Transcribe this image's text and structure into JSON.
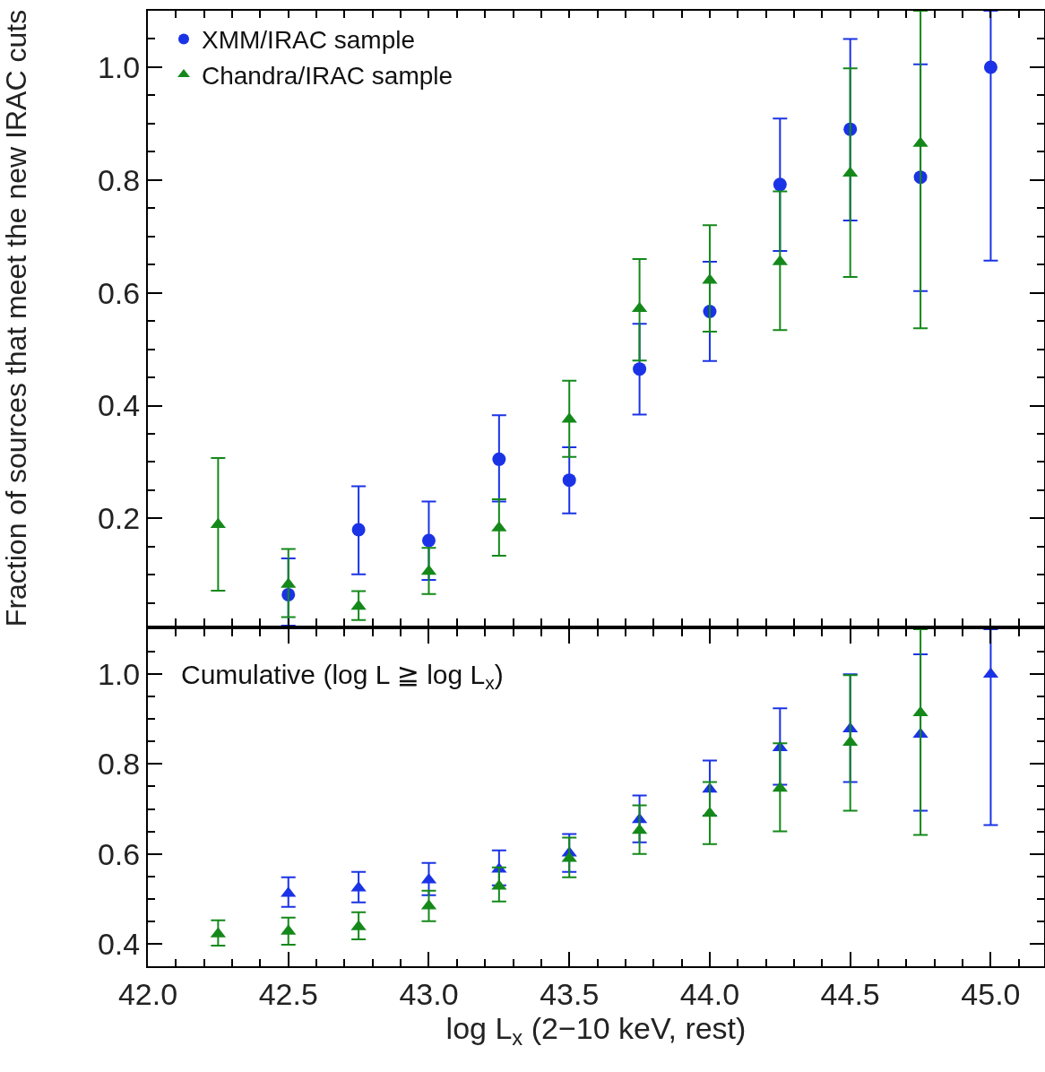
{
  "chart_data": [
    {
      "type": "scatter",
      "ylabel": "Fraction of sources that meet the new IRAC cuts",
      "legend": "top left",
      "tick_labels": "y",
      "xlim": [
        42.0,
        45.19
      ],
      "xticks": [
        {
          "value": 42,
          "label": null
        },
        {
          "value": 42.1,
          "label": null
        },
        {
          "value": 42.2,
          "label": null
        },
        {
          "value": 42.3,
          "label": null
        },
        {
          "value": 42.4,
          "label": null
        },
        {
          "value": 42.5,
          "label": null
        },
        {
          "value": 42.6,
          "label": null
        },
        {
          "value": 42.7,
          "label": null
        },
        {
          "value": 42.8,
          "label": null
        },
        {
          "value": 42.9,
          "label": null
        },
        {
          "value": 43,
          "label": null
        },
        {
          "value": 43.1,
          "label": null
        },
        {
          "value": 43.2,
          "label": null
        },
        {
          "value": 43.3,
          "label": null
        },
        {
          "value": 43.4,
          "label": null
        },
        {
          "value": 43.5,
          "label": null
        },
        {
          "value": 43.6,
          "label": null
        },
        {
          "value": 43.7,
          "label": null
        },
        {
          "value": 43.8,
          "label": null
        },
        {
          "value": 43.9,
          "label": null
        },
        {
          "value": 44,
          "label": null
        },
        {
          "value": 44.1,
          "label": null
        },
        {
          "value": 44.2,
          "label": null
        },
        {
          "value": 44.3,
          "label": null
        },
        {
          "value": 44.4,
          "label": null
        },
        {
          "value": 44.5,
          "label": null
        },
        {
          "value": 44.6,
          "label": null
        },
        {
          "value": 44.7,
          "label": null
        },
        {
          "value": 44.8,
          "label": null
        },
        {
          "value": 44.9,
          "label": null
        },
        {
          "value": 45,
          "label": null
        },
        {
          "value": 45.1,
          "label": null
        }
      ],
      "ylim": [
        0.01,
        1.1
      ],
      "yticks": [
        {
          "value": 0.05,
          "label": null
        },
        {
          "value": 0.1,
          "label": null
        },
        {
          "value": 0.15,
          "label": null
        },
        0.2,
        {
          "value": 0.25,
          "label": null
        },
        {
          "value": 0.3,
          "label": null
        },
        {
          "value": 0.35,
          "label": null
        },
        0.4,
        {
          "value": 0.45,
          "label": null
        },
        {
          "value": 0.5,
          "label": null
        },
        {
          "value": 0.55,
          "label": null
        },
        0.6,
        {
          "value": 0.65,
          "label": null
        },
        {
          "value": 0.7,
          "label": null
        },
        {
          "value": 0.75,
          "label": null
        },
        0.8,
        {
          "value": 0.85,
          "label": null
        },
        {
          "value": 0.9,
          "label": null
        },
        {
          "value": 0.95,
          "label": null
        },
        {
          "value": 1,
          "label": "1.0"
        },
        {
          "value": 1.05,
          "label": null
        }
      ],
      "series": [
        {
          "name": "XMM/IRAC sample",
          "color": "#1a33e6",
          "marker": "circle",
          "x": [
            42.5,
            42.75,
            43.0,
            43.25,
            43.5,
            43.75,
            44.0,
            44.25,
            44.5,
            44.75,
            45.0
          ],
          "values": [
            0.065,
            0.18,
            0.161,
            0.305,
            0.268,
            0.465,
            0.567,
            0.792,
            0.89,
            0.805,
            1.0
          ],
          "errors": [
            [
              0.01,
              0.129
            ],
            [
              0.101,
              0.257
            ],
            [
              0.091,
              0.23
            ],
            [
              0.23,
              0.383
            ],
            [
              0.209,
              0.326
            ],
            [
              0.384,
              0.545
            ],
            [
              0.479,
              0.655
            ],
            [
              0.674,
              0.909
            ],
            [
              0.728,
              1.05
            ],
            [
              0.603,
              1.005
            ],
            [
              0.657,
              1.1
            ]
          ]
        },
        {
          "name": "Chandra/IRAC sample",
          "color": "#14891a",
          "marker": "triangle",
          "x": [
            42.25,
            42.5,
            42.75,
            43.0,
            43.25,
            43.5,
            43.75,
            44.0,
            44.25,
            44.5,
            44.75
          ],
          "values": [
            0.189,
            0.083,
            0.044,
            0.106,
            0.183,
            0.376,
            0.572,
            0.622,
            0.655,
            0.812,
            0.865
          ],
          "errors": [
            [
              0.072,
              0.307
            ],
            [
              0.025,
              0.146
            ],
            [
              0.02,
              0.071
            ],
            [
              0.066,
              0.148
            ],
            [
              0.134,
              0.234
            ],
            [
              0.309,
              0.444
            ],
            [
              0.48,
              0.66
            ],
            [
              0.531,
              0.72
            ],
            [
              0.534,
              0.78
            ],
            [
              0.628,
              0.998
            ],
            [
              0.537,
              1.1
            ]
          ]
        }
      ]
    },
    {
      "type": "scatter",
      "xlabel": "log L$_{x}$ (2−10 keV, rest)",
      "annotations": [
        "Cumulative (log L ≧ log L$_{x}$)"
      ],
      "xlim": [
        42.0,
        45.19
      ],
      "xticks": [
        {
          "value": 42,
          "label": "42.0"
        },
        {
          "value": 42.1,
          "label": null
        },
        {
          "value": 42.2,
          "label": null
        },
        {
          "value": 42.3,
          "label": null
        },
        {
          "value": 42.4,
          "label": null
        },
        {
          "value": 42.5,
          "label": "42.5"
        },
        {
          "value": 42.6,
          "label": null
        },
        {
          "value": 42.7,
          "label": null
        },
        {
          "value": 42.8,
          "label": null
        },
        {
          "value": 42.9,
          "label": null
        },
        {
          "value": 43,
          "label": "43.0"
        },
        {
          "value": 43.1,
          "label": null
        },
        {
          "value": 43.2,
          "label": null
        },
        {
          "value": 43.3,
          "label": null
        },
        {
          "value": 43.4,
          "label": null
        },
        {
          "value": 43.5,
          "label": "43.5"
        },
        {
          "value": 43.6,
          "label": null
        },
        {
          "value": 43.7,
          "label": null
        },
        {
          "value": 43.8,
          "label": null
        },
        {
          "value": 43.9,
          "label": null
        },
        {
          "value": 44,
          "label": "44.0"
        },
        {
          "value": 44.1,
          "label": null
        },
        {
          "value": 44.2,
          "label": null
        },
        {
          "value": 44.3,
          "label": null
        },
        {
          "value": 44.4,
          "label": null
        },
        {
          "value": 44.5,
          "label": "44.5"
        },
        {
          "value": 44.6,
          "label": null
        },
        {
          "value": 44.7,
          "label": null
        },
        {
          "value": 44.8,
          "label": null
        },
        {
          "value": 44.9,
          "label": null
        },
        {
          "value": 45,
          "label": "45.0"
        },
        {
          "value": 45.1,
          "label": null
        }
      ],
      "ylim": [
        0.35,
        1.1
      ],
      "yticks": [
        0.4,
        {
          "value": 0.45,
          "label": null
        },
        {
          "value": 0.5,
          "label": null
        },
        {
          "value": 0.55,
          "label": null
        },
        0.6,
        {
          "value": 0.65,
          "label": null
        },
        {
          "value": 0.7,
          "label": null
        },
        {
          "value": 0.75,
          "label": null
        },
        0.8,
        {
          "value": 0.85,
          "label": null
        },
        {
          "value": 0.9,
          "label": null
        },
        {
          "value": 0.95,
          "label": null
        },
        {
          "value": 1,
          "label": "1.0"
        },
        {
          "value": 1.05,
          "label": null
        }
      ],
      "series": [
        {
          "color": "#1a33e6",
          "marker": "triangle",
          "x": [
            42.5,
            42.75,
            43.0,
            43.25,
            43.5,
            43.75,
            44.0,
            44.25,
            44.5,
            44.75,
            45.0
          ],
          "values": [
            0.512,
            0.524,
            0.542,
            0.566,
            0.602,
            0.676,
            0.744,
            0.836,
            0.878,
            0.866,
            1.0
          ],
          "errors": [
            [
              0.482,
              0.548
            ],
            [
              0.492,
              0.56
            ],
            [
              0.508,
              0.58
            ],
            [
              0.53,
              0.608
            ],
            [
              0.56,
              0.644
            ],
            [
              0.626,
              0.73
            ],
            [
              0.685,
              0.808
            ],
            [
              0.754,
              0.924
            ],
            [
              0.76,
              1.0
            ],
            [
              0.696,
              1.044
            ],
            [
              0.664,
              1.1
            ]
          ]
        },
        {
          "color": "#14891a",
          "marker": "triangle",
          "x": [
            42.25,
            42.5,
            42.75,
            43.0,
            43.25,
            43.5,
            43.75,
            44.0,
            44.25,
            44.5,
            44.75
          ],
          "values": [
            0.422,
            0.428,
            0.438,
            0.484,
            0.528,
            0.59,
            0.652,
            0.69,
            0.746,
            0.848,
            0.914
          ],
          "errors": [
            [
              0.396,
              0.452
            ],
            [
              0.398,
              0.458
            ],
            [
              0.41,
              0.47
            ],
            [
              0.45,
              0.518
            ],
            [
              0.494,
              0.57
            ],
            [
              0.548,
              0.636
            ],
            [
              0.6,
              0.708
            ],
            [
              0.622,
              0.76
            ],
            [
              0.65,
              0.846
            ],
            [
              0.696,
              0.998
            ],
            [
              0.642,
              1.1
            ]
          ]
        }
      ]
    }
  ]
}
